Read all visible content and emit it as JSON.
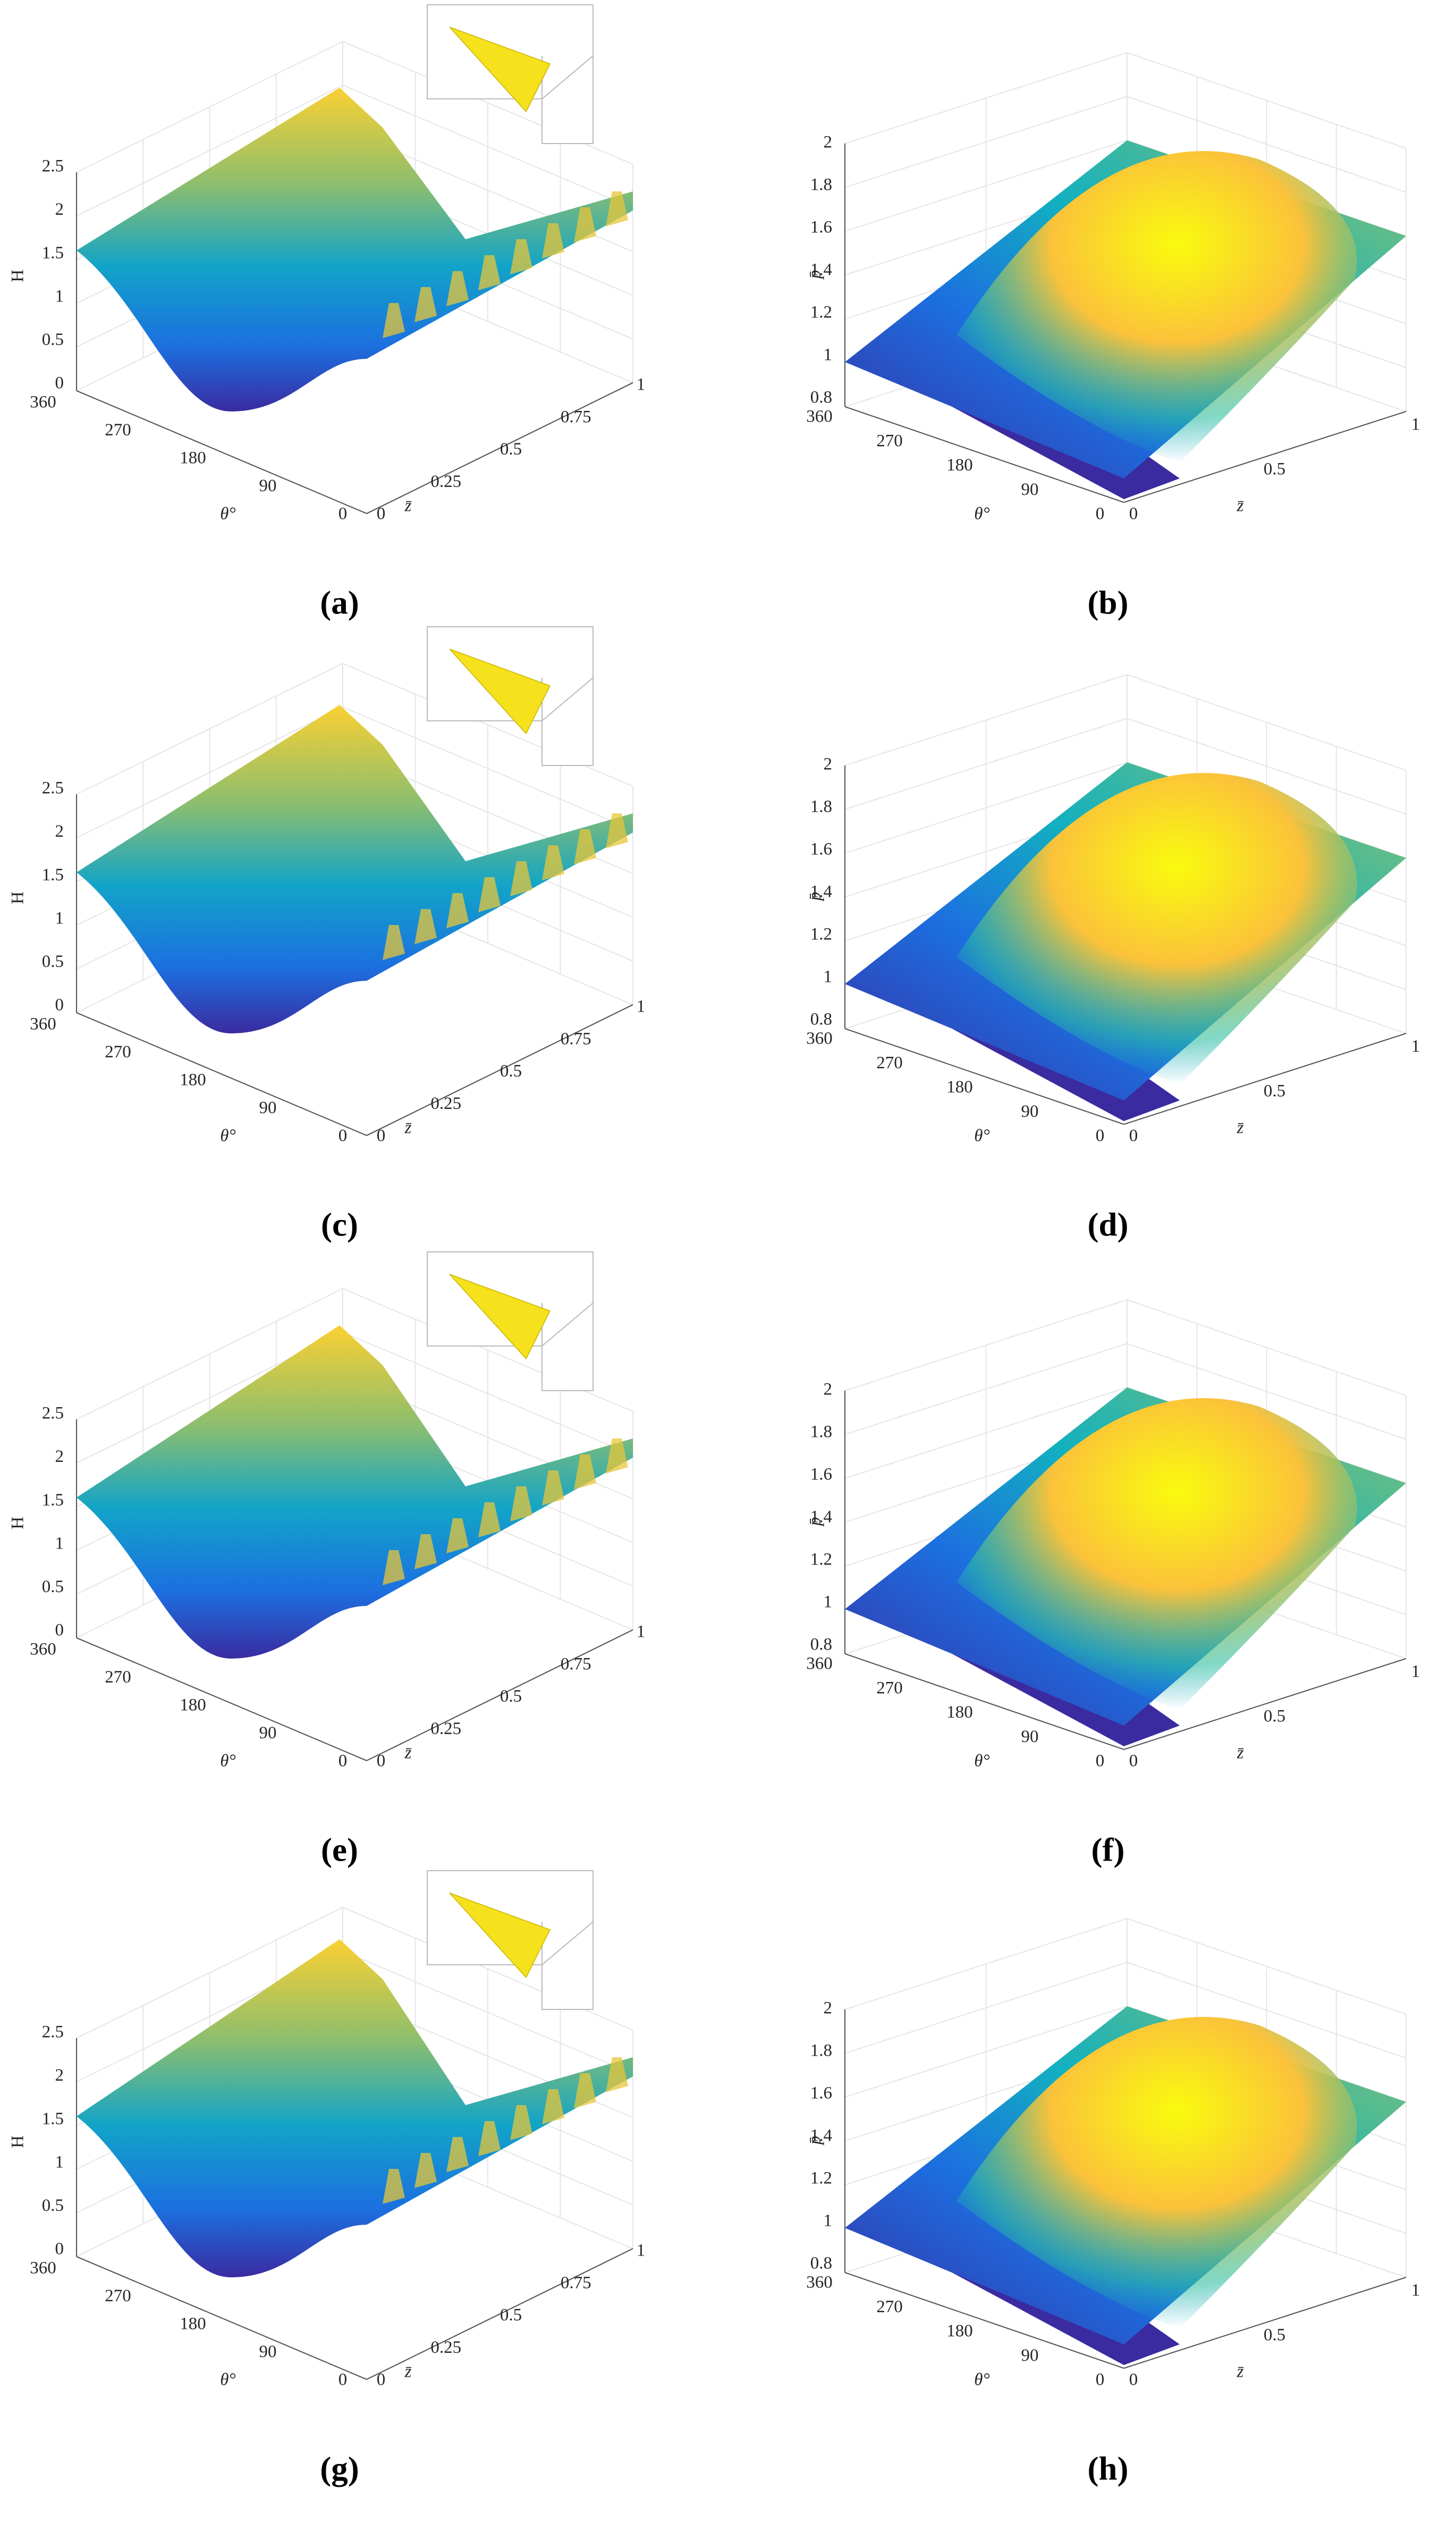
{
  "figure": {
    "panels": [
      {
        "label": "(a)",
        "kind": "H"
      },
      {
        "label": "(b)",
        "kind": "p"
      },
      {
        "label": "(c)",
        "kind": "H"
      },
      {
        "label": "(d)",
        "kind": "p"
      },
      {
        "label": "(e)",
        "kind": "H"
      },
      {
        "label": "(f)",
        "kind": "p"
      },
      {
        "label": "(g)",
        "kind": "H"
      },
      {
        "label": "(h)",
        "kind": "p"
      }
    ],
    "H_axes": {
      "vertical_title": "H",
      "theta_title": "θ°",
      "z_title": "z̄",
      "vertical_ticks": [
        "0",
        "0.5",
        "1",
        "1.5",
        "2",
        "2.5"
      ],
      "theta_ticks": [
        "360",
        "270",
        "180",
        "90",
        "0"
      ],
      "z_ticks": [
        "0",
        "0.25",
        "0.5",
        "0.75",
        "1"
      ]
    },
    "p_axes": {
      "vertical_title": "p̄",
      "theta_title": "θ°",
      "z_title": "z̄",
      "vertical_ticks": [
        "0.8",
        "1",
        "1.2",
        "1.4",
        "1.6",
        "1.8",
        "2"
      ],
      "theta_ticks": [
        "360",
        "270",
        "180",
        "90",
        "0"
      ],
      "z_ticks": [
        "0",
        "0.5",
        "1"
      ]
    }
  }
}
